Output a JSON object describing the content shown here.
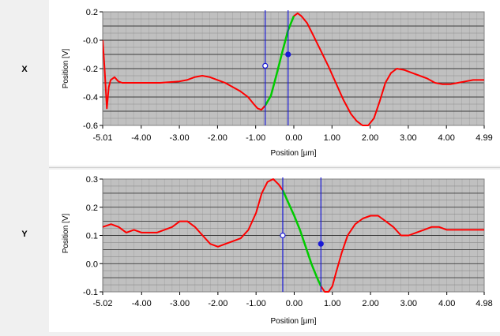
{
  "channels": [
    {
      "name": "X"
    },
    {
      "name": "Y"
    }
  ],
  "colors": {
    "plot_bg": "#c0c0c0",
    "major_grid": "#3c3c3c",
    "minor_grid": "#8c8c8c",
    "trace": "#ff0000",
    "fit": "#00cc00",
    "cursor": "#1a1ad6",
    "panel_bg": "#ffffff",
    "window_bg": "#f0f0f0"
  },
  "chart_data": [
    {
      "type": "line",
      "title": "",
      "xlabel": "Position [µm]",
      "ylabel": "Position [V]",
      "xlim": [
        -5.01,
        4.99
      ],
      "ylim": [
        -0.6,
        0.2
      ],
      "xtick_labels": [
        "-5.01",
        "-4.00",
        "-3.00",
        "-2.00",
        "-1.00",
        "0.00",
        "1.00",
        "2.00",
        "3.00",
        "4.00",
        "4.99"
      ],
      "xtick_values": [
        -5.01,
        -4.0,
        -3.0,
        -2.0,
        -1.0,
        0.0,
        1.0,
        2.0,
        3.0,
        4.0,
        4.99
      ],
      "ytick_labels": [
        "0.2",
        "-0.0",
        "-0.2",
        "-0.4",
        "-0.6"
      ],
      "ytick_values": [
        0.2,
        0.0,
        -0.2,
        -0.4,
        -0.6
      ],
      "grid": true,
      "series": [
        {
          "x": [
            -5.01,
            -4.96,
            -4.9,
            -4.85,
            -4.8,
            -4.7,
            -4.6,
            -4.5,
            -4.3,
            -4.0,
            -3.5,
            -3.0,
            -2.8,
            -2.6,
            -2.4,
            -2.2,
            -2.0,
            -1.8,
            -1.6,
            -1.4,
            -1.2,
            -1.05,
            -0.95,
            -0.85,
            -0.75,
            -0.6,
            -0.45,
            -0.3,
            -0.15,
            0.0,
            0.1,
            0.2,
            0.35,
            0.5,
            0.7,
            0.9,
            1.1,
            1.3,
            1.5,
            1.65,
            1.8,
            1.95,
            2.1,
            2.25,
            2.4,
            2.55,
            2.7,
            2.9,
            3.1,
            3.3,
            3.5,
            3.7,
            3.9,
            4.1,
            4.3,
            4.5,
            4.7,
            4.85,
            4.99
          ],
          "values": [
            0.0,
            -0.2,
            -0.48,
            -0.33,
            -0.28,
            -0.26,
            -0.29,
            -0.3,
            -0.3,
            -0.3,
            -0.3,
            -0.29,
            -0.28,
            -0.26,
            -0.25,
            -0.26,
            -0.28,
            -0.3,
            -0.33,
            -0.36,
            -0.4,
            -0.45,
            -0.48,
            -0.49,
            -0.46,
            -0.39,
            -0.24,
            -0.08,
            0.07,
            0.17,
            0.19,
            0.17,
            0.12,
            0.04,
            -0.07,
            -0.18,
            -0.3,
            -0.42,
            -0.52,
            -0.57,
            -0.6,
            -0.6,
            -0.55,
            -0.43,
            -0.3,
            -0.23,
            -0.2,
            -0.21,
            -0.23,
            -0.25,
            -0.27,
            -0.3,
            -0.31,
            -0.31,
            -0.3,
            -0.29,
            -0.28,
            -0.28,
            -0.28
          ]
        }
      ],
      "fit_segment": {
        "x": [
          -0.75,
          -0.6,
          -0.45,
          -0.3,
          -0.15,
          0.0
        ],
        "values": [
          -0.46,
          -0.39,
          -0.24,
          -0.08,
          0.07,
          0.17
        ]
      },
      "cursors": [
        {
          "x": -0.75,
          "marker_y": -0.18,
          "marker_style": "open"
        },
        {
          "x": -0.15,
          "marker_y": -0.1,
          "marker_style": "filled"
        }
      ]
    },
    {
      "type": "line",
      "title": "",
      "xlabel": "Position [µm]",
      "ylabel": "Position [V]",
      "xlim": [
        -5.02,
        4.98
      ],
      "ylim": [
        -0.1,
        0.3
      ],
      "xtick_labels": [
        "-5.02",
        "-4.00",
        "-3.00",
        "-2.00",
        "-1.00",
        "0.00",
        "1.00",
        "2.00",
        "3.00",
        "4.00",
        "4.98"
      ],
      "xtick_values": [
        -5.02,
        -4.0,
        -3.0,
        -2.0,
        -1.0,
        0.0,
        1.0,
        2.0,
        3.0,
        4.0,
        4.98
      ],
      "ytick_labels": [
        "0.3",
        "0.2",
        "0.1",
        "0.0",
        "-0.1"
      ],
      "ytick_values": [
        0.3,
        0.2,
        0.1,
        0.0,
        -0.1
      ],
      "grid": true,
      "series": [
        {
          "x": [
            -5.02,
            -4.8,
            -4.6,
            -4.4,
            -4.2,
            -4.0,
            -3.6,
            -3.2,
            -3.0,
            -2.8,
            -2.6,
            -2.4,
            -2.2,
            -2.0,
            -1.8,
            -1.6,
            -1.4,
            -1.2,
            -1.0,
            -0.85,
            -0.7,
            -0.55,
            -0.4,
            -0.3,
            -0.2,
            -0.1,
            0.0,
            0.15,
            0.3,
            0.45,
            0.6,
            0.7,
            0.8,
            0.9,
            1.0,
            1.1,
            1.25,
            1.4,
            1.6,
            1.8,
            2.0,
            2.2,
            2.4,
            2.6,
            2.8,
            3.0,
            3.2,
            3.4,
            3.6,
            3.8,
            4.0,
            4.2,
            4.4,
            4.6,
            4.8,
            4.98
          ],
          "values": [
            0.13,
            0.14,
            0.13,
            0.11,
            0.12,
            0.11,
            0.11,
            0.13,
            0.15,
            0.15,
            0.13,
            0.1,
            0.07,
            0.06,
            0.07,
            0.08,
            0.09,
            0.12,
            0.18,
            0.25,
            0.29,
            0.3,
            0.28,
            0.26,
            0.23,
            0.2,
            0.17,
            0.12,
            0.06,
            0.0,
            -0.05,
            -0.08,
            -0.1,
            -0.1,
            -0.08,
            -0.03,
            0.04,
            0.1,
            0.14,
            0.16,
            0.17,
            0.17,
            0.15,
            0.13,
            0.1,
            0.1,
            0.11,
            0.12,
            0.13,
            0.13,
            0.12,
            0.12,
            0.12,
            0.12,
            0.12,
            0.12
          ]
        }
      ],
      "fit_segment": {
        "x": [
          -0.3,
          -0.2,
          -0.1,
          0.0,
          0.15,
          0.3,
          0.45,
          0.6,
          0.7
        ],
        "values": [
          0.26,
          0.23,
          0.2,
          0.17,
          0.12,
          0.06,
          0.0,
          -0.05,
          -0.08
        ]
      },
      "cursors": [
        {
          "x": -0.3,
          "marker_y": 0.1,
          "marker_style": "open"
        },
        {
          "x": 0.7,
          "marker_y": 0.07,
          "marker_style": "filled"
        }
      ]
    }
  ]
}
